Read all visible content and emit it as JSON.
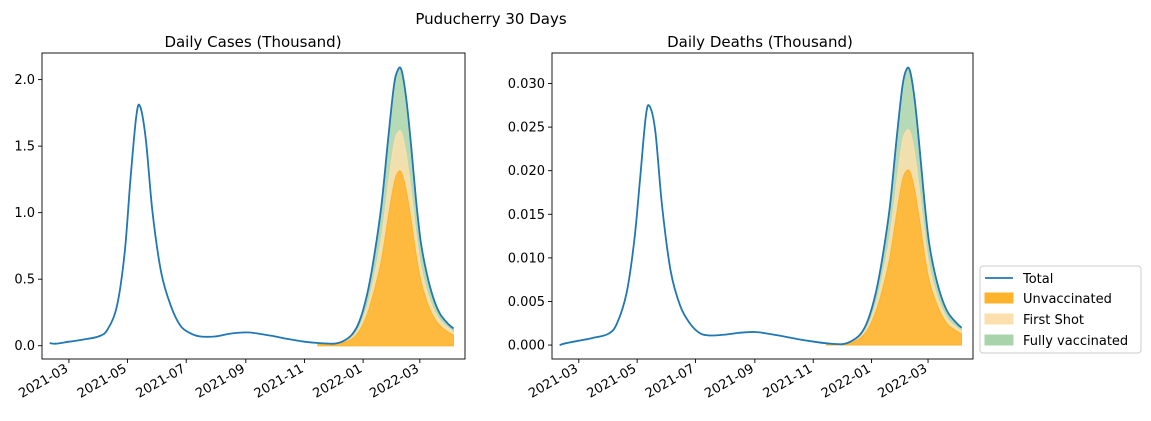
{
  "figure": {
    "suptitle": "Puducherry 30 Days"
  },
  "legend": {
    "placement": "bottom-right, outside the right chart",
    "entries": [
      {
        "label": "Total",
        "kind": "line",
        "color": "#1f77b4"
      },
      {
        "label": "Unvaccinated",
        "kind": "patch",
        "color": "#ffb32a"
      },
      {
        "label": "First Shot",
        "kind": "patch",
        "color": "#fbe0ad"
      },
      {
        "label": "Fully vaccinated",
        "kind": "patch",
        "color": "#a9d4a9"
      }
    ]
  },
  "chart_data": [
    {
      "type": "area",
      "title": "Daily Cases (Thousand)",
      "xlabel": "",
      "ylabel": "",
      "x_type": "date",
      "xlim": [
        "2021-02-01",
        "2022-04-17"
      ],
      "ylim": [
        -0.1,
        2.2
      ],
      "x_ticks": [
        "2021-03",
        "2021-05",
        "2021-07",
        "2021-09",
        "2021-11",
        "2022-01",
        "2022-03"
      ],
      "y_ticks": [
        "0.0",
        "0.5",
        "1.0",
        "1.5",
        "2.0"
      ],
      "y_tick_values": [
        0,
        0.5,
        1.0,
        1.5,
        2.0
      ],
      "grid": false,
      "series": [
        {
          "name": "Total",
          "type": "line",
          "color": "#1f77b4",
          "x": [
            "2021-02-09",
            "2021-02-15",
            "2021-03-01",
            "2021-03-15",
            "2021-04-01",
            "2021-04-10",
            "2021-04-20",
            "2021-04-28",
            "2021-05-04",
            "2021-05-10",
            "2021-05-14",
            "2021-05-20",
            "2021-05-27",
            "2021-06-05",
            "2021-06-15",
            "2021-06-25",
            "2021-07-05",
            "2021-07-15",
            "2021-08-01",
            "2021-08-15",
            "2021-09-01",
            "2021-09-15",
            "2021-10-01",
            "2021-10-15",
            "2021-11-01",
            "2021-11-15",
            "2021-12-01",
            "2021-12-10",
            "2021-12-20",
            "2021-12-28",
            "2022-01-05",
            "2022-01-12",
            "2022-01-20",
            "2022-01-27",
            "2022-02-02",
            "2022-02-06",
            "2022-02-10",
            "2022-02-15",
            "2022-02-20",
            "2022-02-25",
            "2022-03-02",
            "2022-03-08",
            "2022-03-15",
            "2022-03-22",
            "2022-03-31",
            "2022-04-05"
          ],
          "values": [
            0.02,
            0.015,
            0.03,
            0.045,
            0.07,
            0.12,
            0.3,
            0.7,
            1.25,
            1.72,
            1.8,
            1.55,
            1.0,
            0.55,
            0.3,
            0.15,
            0.095,
            0.07,
            0.07,
            0.09,
            0.1,
            0.09,
            0.07,
            0.05,
            0.03,
            0.02,
            0.015,
            0.03,
            0.08,
            0.18,
            0.38,
            0.65,
            1.05,
            1.55,
            1.95,
            2.07,
            2.07,
            1.85,
            1.5,
            1.1,
            0.78,
            0.55,
            0.36,
            0.24,
            0.16,
            0.13
          ]
        },
        {
          "name": "Unvaccinated",
          "type": "area",
          "color": "#ffb32a",
          "x": [
            "2021-11-15",
            "2021-12-01",
            "2021-12-10",
            "2021-12-20",
            "2021-12-28",
            "2022-01-05",
            "2022-01-12",
            "2022-01-20",
            "2022-01-27",
            "2022-02-02",
            "2022-02-06",
            "2022-02-10",
            "2022-02-15",
            "2022-02-20",
            "2022-02-25",
            "2022-03-02",
            "2022-03-08",
            "2022-03-15",
            "2022-03-22",
            "2022-03-31",
            "2022-04-05"
          ],
          "values": [
            0.012,
            0.01,
            0.02,
            0.05,
            0.11,
            0.23,
            0.4,
            0.64,
            0.96,
            1.21,
            1.3,
            1.3,
            1.16,
            0.94,
            0.69,
            0.49,
            0.34,
            0.22,
            0.15,
            0.1,
            0.08
          ]
        },
        {
          "name": "First Shot",
          "type": "area",
          "color": "#fbe0ad",
          "x": [
            "2021-11-15",
            "2021-12-01",
            "2021-12-10",
            "2021-12-20",
            "2021-12-28",
            "2022-01-05",
            "2022-01-12",
            "2022-01-20",
            "2022-01-27",
            "2022-02-02",
            "2022-02-06",
            "2022-02-10",
            "2022-02-15",
            "2022-02-20",
            "2022-02-25",
            "2022-03-02",
            "2022-03-08",
            "2022-03-15",
            "2022-03-22",
            "2022-03-31",
            "2022-04-05"
          ],
          "values": [
            0.015,
            0.012,
            0.025,
            0.062,
            0.14,
            0.29,
            0.5,
            0.81,
            1.2,
            1.51,
            1.6,
            1.6,
            1.43,
            1.16,
            0.85,
            0.6,
            0.42,
            0.28,
            0.19,
            0.13,
            0.1
          ]
        },
        {
          "name": "Fully vaccinated",
          "type": "area",
          "color": "#a9d4a9",
          "x": [
            "2021-11-15",
            "2021-12-01",
            "2021-12-10",
            "2021-12-20",
            "2021-12-28",
            "2022-01-05",
            "2022-01-12",
            "2022-01-20",
            "2022-01-27",
            "2022-02-02",
            "2022-02-06",
            "2022-02-10",
            "2022-02-15",
            "2022-02-20",
            "2022-02-25",
            "2022-03-02",
            "2022-03-08",
            "2022-03-15",
            "2022-03-22",
            "2022-03-31",
            "2022-04-05"
          ],
          "values": [
            0.02,
            0.015,
            0.03,
            0.08,
            0.18,
            0.38,
            0.65,
            1.05,
            1.55,
            1.95,
            2.07,
            2.07,
            1.85,
            1.5,
            1.1,
            0.78,
            0.55,
            0.36,
            0.24,
            0.16,
            0.13
          ]
        }
      ]
    },
    {
      "type": "area",
      "title": "Daily Deaths (Thousand)",
      "xlabel": "",
      "ylabel": "",
      "x_type": "date",
      "xlim": [
        "2021-02-01",
        "2022-04-17"
      ],
      "ylim": [
        -0.0016,
        0.0335
      ],
      "x_ticks": [
        "2021-03",
        "2021-05",
        "2021-07",
        "2021-09",
        "2021-11",
        "2022-01",
        "2022-03"
      ],
      "y_ticks": [
        "0.000",
        "0.005",
        "0.010",
        "0.015",
        "0.020",
        "0.025",
        "0.030"
      ],
      "y_tick_values": [
        0,
        0.005,
        0.01,
        0.015,
        0.02,
        0.025,
        0.03
      ],
      "grid": false,
      "series": [
        {
          "name": "Total",
          "type": "line",
          "color": "#1f77b4",
          "x": [
            "2021-02-09",
            "2021-02-15",
            "2021-03-01",
            "2021-03-15",
            "2021-04-01",
            "2021-04-10",
            "2021-04-20",
            "2021-04-28",
            "2021-05-04",
            "2021-05-10",
            "2021-05-14",
            "2021-05-20",
            "2021-05-27",
            "2021-06-05",
            "2021-06-15",
            "2021-06-25",
            "2021-07-05",
            "2021-07-15",
            "2021-08-01",
            "2021-08-15",
            "2021-09-01",
            "2021-09-15",
            "2021-10-01",
            "2021-10-15",
            "2021-11-01",
            "2021-11-15",
            "2021-12-01",
            "2021-12-10",
            "2021-12-20",
            "2021-12-28",
            "2022-01-05",
            "2022-01-12",
            "2022-01-20",
            "2022-01-27",
            "2022-02-02",
            "2022-02-06",
            "2022-02-10",
            "2022-02-15",
            "2022-02-20",
            "2022-02-25",
            "2022-03-02",
            "2022-03-08",
            "2022-03-15",
            "2022-03-22",
            "2022-03-31",
            "2022-04-05"
          ],
          "values": [
            0.0,
            0.0002,
            0.0005,
            0.0008,
            0.0013,
            0.0025,
            0.006,
            0.012,
            0.019,
            0.0262,
            0.0274,
            0.0245,
            0.016,
            0.0085,
            0.0045,
            0.0025,
            0.0014,
            0.0011,
            0.0012,
            0.0014,
            0.0015,
            0.0013,
            0.001,
            0.0007,
            0.0004,
            0.0002,
            0.0001,
            0.0004,
            0.0012,
            0.0028,
            0.0058,
            0.0098,
            0.0158,
            0.0235,
            0.0295,
            0.0315,
            0.0315,
            0.0282,
            0.0228,
            0.0168,
            0.0118,
            0.0083,
            0.0055,
            0.0037,
            0.0025,
            0.002
          ]
        },
        {
          "name": "Unvaccinated",
          "type": "area",
          "color": "#ffb32a",
          "x": [
            "2021-11-15",
            "2021-12-01",
            "2021-12-10",
            "2021-12-20",
            "2021-12-28",
            "2022-01-05",
            "2022-01-12",
            "2022-01-20",
            "2022-01-27",
            "2022-02-02",
            "2022-02-06",
            "2022-02-10",
            "2022-02-15",
            "2022-02-20",
            "2022-02-25",
            "2022-03-02",
            "2022-03-08",
            "2022-03-15",
            "2022-03-22",
            "2022-03-31",
            "2022-04-05"
          ],
          "values": [
            0.00013,
            0.0001,
            0.00025,
            0.0008,
            0.0018,
            0.0037,
            0.0062,
            0.01,
            0.0149,
            0.0188,
            0.0199,
            0.0199,
            0.0178,
            0.0144,
            0.0106,
            0.0075,
            0.0053,
            0.0035,
            0.0023,
            0.0016,
            0.0013
          ]
        },
        {
          "name": "First Shot",
          "type": "area",
          "color": "#fbe0ad",
          "x": [
            "2021-11-15",
            "2021-12-01",
            "2021-12-10",
            "2021-12-20",
            "2021-12-28",
            "2022-01-05",
            "2022-01-12",
            "2022-01-20",
            "2022-01-27",
            "2022-02-02",
            "2022-02-06",
            "2022-02-10",
            "2022-02-15",
            "2022-02-20",
            "2022-02-25",
            "2022-03-02",
            "2022-03-08",
            "2022-03-15",
            "2022-03-22",
            "2022-03-31",
            "2022-04-05"
          ],
          "values": [
            0.00016,
            0.0001,
            0.0003,
            0.00095,
            0.0022,
            0.0045,
            0.0077,
            0.0124,
            0.0184,
            0.0232,
            0.0245,
            0.0245,
            0.022,
            0.0177,
            0.0131,
            0.0092,
            0.0065,
            0.0043,
            0.0029,
            0.002,
            0.0016
          ]
        },
        {
          "name": "Fully vaccinated",
          "type": "area",
          "color": "#a9d4a9",
          "x": [
            "2021-11-15",
            "2021-12-01",
            "2021-12-10",
            "2021-12-20",
            "2021-12-28",
            "2022-01-05",
            "2022-01-12",
            "2022-01-20",
            "2022-01-27",
            "2022-02-02",
            "2022-02-06",
            "2022-02-10",
            "2022-02-15",
            "2022-02-20",
            "2022-02-25",
            "2022-03-02",
            "2022-03-08",
            "2022-03-15",
            "2022-03-22",
            "2022-03-31",
            "2022-04-05"
          ],
          "values": [
            0.0002,
            0.0001,
            0.0004,
            0.0012,
            0.0028,
            0.0058,
            0.0098,
            0.0158,
            0.0235,
            0.0295,
            0.0315,
            0.0315,
            0.0282,
            0.0228,
            0.0168,
            0.0118,
            0.0083,
            0.0055,
            0.0037,
            0.0025,
            0.002
          ]
        }
      ]
    }
  ]
}
